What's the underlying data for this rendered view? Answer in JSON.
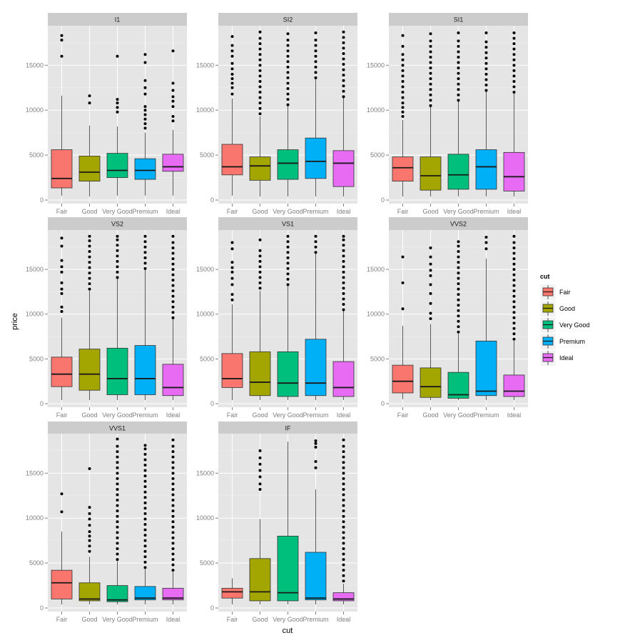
{
  "chart_data": {
    "type": "box",
    "xlabel": "cut",
    "ylabel": "price",
    "categories": [
      "Fair",
      "Good",
      "Very Good",
      "Premium",
      "Ideal"
    ],
    "colors": {
      "Fair": "#f8766d",
      "Good": "#a3a500",
      "Very Good": "#00bf7d",
      "Premium": "#00b0f6",
      "Ideal": "#e76bf3",
      "panel_bg": "#e5e5e5",
      "strip_bg": "#cccccc",
      "grid": "#ffffff"
    },
    "legend": {
      "title": "cut",
      "position": "right",
      "labels": [
        "Fair",
        "Good",
        "Very Good",
        "Premium",
        "Ideal"
      ]
    },
    "facets": [
      {
        "name": "I1",
        "ylim": [
          0,
          19000
        ],
        "yticks": [
          0,
          5000,
          10000,
          15000
        ],
        "boxes": [
          {
            "q1": 1350,
            "median": 2400,
            "q3": 5600,
            "whisker_low": 500,
            "whisker_high": 11600,
            "outliers": [
              16000,
              17800,
              18300
            ]
          },
          {
            "q1": 2100,
            "median": 3100,
            "q3": 4900,
            "whisker_low": 400,
            "whisker_high": 8300,
            "outliers": [
              10800,
              11600
            ]
          },
          {
            "q1": 2500,
            "median": 3300,
            "q3": 5200,
            "whisker_low": 500,
            "whisker_high": 8200,
            "outliers": [
              9800,
              10300,
              10800,
              11200,
              16000
            ]
          },
          {
            "q1": 2300,
            "median": 3300,
            "q3": 4600,
            "whisker_low": 500,
            "whisker_high": 7500,
            "outliers": [
              8000,
              8500,
              9000,
              9500,
              10000,
              10400,
              11800,
              12500,
              13300,
              15300,
              16200
            ]
          },
          {
            "q1": 3200,
            "median": 3700,
            "q3": 5100,
            "whisker_low": 500,
            "whisker_high": 7800,
            "outliers": [
              8800,
              9300,
              10400,
              11000,
              11500,
              12200,
              13000,
              16600
            ]
          }
        ]
      },
      {
        "name": "SI2",
        "ylim": [
          0,
          19000
        ],
        "yticks": [
          0,
          5000,
          10000,
          15000
        ],
        "boxes": [
          {
            "q1": 2800,
            "median": 3700,
            "q3": 6200,
            "whisker_low": 500,
            "whisker_high": 11300,
            "outliers": [
              11800,
              12500,
              13000,
              13500,
              14000,
              14600,
              15200,
              16000,
              16600,
              17200,
              18200
            ]
          },
          {
            "q1": 2200,
            "median": 3800,
            "q3": 4800,
            "whisker_low": 400,
            "whisker_high": 9300,
            "outliers": [
              9600,
              10200,
              10800,
              11400,
              12000,
              12600,
              13200,
              13800,
              14400,
              15000,
              15600,
              16200,
              16800,
              17400,
              18000,
              18700
            ]
          },
          {
            "q1": 2300,
            "median": 4100,
            "q3": 5600,
            "whisker_low": 400,
            "whisker_high": 10500,
            "outliers": [
              10600,
              11200,
              11800,
              12400,
              13000,
              13600,
              14200,
              14800,
              15400,
              16000,
              16600,
              17200,
              17800,
              18500
            ]
          },
          {
            "q1": 2400,
            "median": 4300,
            "q3": 6900,
            "whisker_low": 400,
            "whisker_high": 13500,
            "outliers": [
              13600,
              14200,
              14800,
              15400,
              16000,
              16600,
              17200,
              17800,
              18600
            ]
          },
          {
            "q1": 1500,
            "median": 4100,
            "q3": 5500,
            "whisker_low": 400,
            "whisker_high": 11400,
            "outliers": [
              11500,
              12100,
              12700,
              13300,
              13900,
              14500,
              15100,
              15700,
              16300,
              16900,
              17500,
              18100,
              18700
            ]
          }
        ]
      },
      {
        "name": "SI1",
        "ylim": [
          0,
          19000
        ],
        "yticks": [
          0,
          5000,
          10000,
          15000
        ],
        "boxes": [
          {
            "q1": 2100,
            "median": 3600,
            "q3": 4800,
            "whisker_low": 400,
            "whisker_high": 8900,
            "outliers": [
              9300,
              9800,
              10300,
              10800,
              11400,
              12000,
              12600,
              13200,
              13800,
              14400,
              15000,
              15600,
              16200,
              17100,
              18300
            ]
          },
          {
            "q1": 1100,
            "median": 2700,
            "q3": 4800,
            "whisker_low": 400,
            "whisker_high": 10400,
            "outliers": [
              10500,
              11100,
              11700,
              12300,
              12900,
              13500,
              14100,
              14700,
              15300,
              15900,
              16500,
              17100,
              17700,
              18500
            ]
          },
          {
            "q1": 1200,
            "median": 2800,
            "q3": 5100,
            "whisker_low": 400,
            "whisker_high": 11000,
            "outliers": [
              11100,
              11700,
              12300,
              12900,
              13500,
              14100,
              14700,
              15300,
              15900,
              16500,
              17100,
              17700,
              18600
            ]
          },
          {
            "q1": 1200,
            "median": 3700,
            "q3": 5600,
            "whisker_low": 400,
            "whisker_high": 12100,
            "outliers": [
              12200,
              12800,
              13400,
              14000,
              14600,
              15200,
              15800,
              16400,
              17000,
              17600,
              18600
            ]
          },
          {
            "q1": 1000,
            "median": 2600,
            "q3": 5300,
            "whisker_low": 400,
            "whisker_high": 11900,
            "outliers": [
              12000,
              12600,
              13200,
              13800,
              14400,
              15000,
              15600,
              16200,
              16800,
              17400,
              18000,
              18600
            ]
          }
        ]
      },
      {
        "name": "VS2",
        "ylim": [
          0,
          19000
        ],
        "yticks": [
          0,
          5000,
          10000,
          15000
        ],
        "boxes": [
          {
            "q1": 1900,
            "median": 3300,
            "q3": 5200,
            "whisker_low": 400,
            "whisker_high": 9600,
            "outliers": [
              10300,
              10800,
              12300,
              12800,
              13500,
              14700,
              15300,
              16000,
              17600,
              18500
            ]
          },
          {
            "q1": 1500,
            "median": 3300,
            "q3": 6100,
            "whisker_low": 400,
            "whisker_high": 12600,
            "outliers": [
              12800,
              13400,
              14000,
              14600,
              15200,
              15800,
              16400,
              17000,
              17600,
              18200,
              18700
            ]
          },
          {
            "q1": 1000,
            "median": 2800,
            "q3": 6200,
            "whisker_low": 400,
            "whisker_high": 14000,
            "outliers": [
              14100,
              14700,
              15300,
              15900,
              16500,
              17100,
              17700,
              18300,
              18700
            ]
          },
          {
            "q1": 1000,
            "median": 2800,
            "q3": 6500,
            "whisker_low": 400,
            "whisker_high": 15000,
            "outliers": [
              15100,
              15700,
              16300,
              16900,
              17500,
              18100,
              18700
            ]
          },
          {
            "q1": 900,
            "median": 1800,
            "q3": 4400,
            "whisker_low": 400,
            "whisker_high": 9500,
            "outliers": [
              9600,
              10200,
              10800,
              11400,
              12000,
              12600,
              13200,
              13800,
              14400,
              15000,
              15600,
              16200,
              16800,
              17400,
              18000,
              18700
            ]
          }
        ]
      },
      {
        "name": "VS1",
        "ylim": [
          0,
          19000
        ],
        "yticks": [
          0,
          5000,
          10000,
          15000
        ],
        "boxes": [
          {
            "q1": 1800,
            "median": 2800,
            "q3": 5600,
            "whisker_low": 400,
            "whisker_high": 11100,
            "outliers": [
              11600,
              12200,
              13300,
              14000,
              14700,
              15200,
              15800,
              17300,
              18000
            ]
          },
          {
            "q1": 900,
            "median": 2400,
            "q3": 5800,
            "whisker_low": 400,
            "whisker_high": 12600,
            "outliers": [
              12900,
              13500,
              14100,
              14700,
              15300,
              15900,
              16500,
              17100,
              18300
            ]
          },
          {
            "q1": 800,
            "median": 2300,
            "q3": 5800,
            "whisker_low": 400,
            "whisker_high": 13200,
            "outliers": [
              13300,
              13900,
              14500,
              15100,
              15700,
              16300,
              16900,
              17500,
              18100,
              18700
            ]
          },
          {
            "q1": 900,
            "median": 2300,
            "q3": 7200,
            "whisker_low": 400,
            "whisker_high": 16800,
            "outliers": [
              16900,
              17500,
              18100,
              18700
            ]
          },
          {
            "q1": 800,
            "median": 1800,
            "q3": 4700,
            "whisker_low": 400,
            "whisker_high": 10400,
            "outliers": [
              10500,
              11100,
              11700,
              12300,
              12900,
              13500,
              14100,
              14700,
              15300,
              15900,
              16500,
              17100,
              17700,
              18300,
              18700
            ]
          }
        ]
      },
      {
        "name": "VVS2",
        "ylim": [
          0,
          19000
        ],
        "yticks": [
          0,
          5000,
          10000,
          15000
        ],
        "boxes": [
          {
            "q1": 1200,
            "median": 2500,
            "q3": 4300,
            "whisker_low": 500,
            "whisker_high": 8700,
            "outliers": [
              10600,
              13500,
              16400
            ]
          },
          {
            "q1": 700,
            "median": 1900,
            "q3": 4000,
            "whisker_low": 400,
            "whisker_high": 8900,
            "outliers": [
              9500,
              10100,
              11200,
              12300,
              13300,
              14300,
              14900,
              15600,
              16400,
              17400
            ]
          },
          {
            "q1": 600,
            "median": 1000,
            "q3": 3500,
            "whisker_low": 400,
            "whisker_high": 7800,
            "outliers": [
              8000,
              8600,
              9200,
              9800,
              10400,
              11000,
              11600,
              12200,
              12800,
              13400,
              14000,
              14600,
              15200,
              15800,
              16400,
              17000,
              17600,
              18100
            ]
          },
          {
            "q1": 900,
            "median": 1400,
            "q3": 7000,
            "whisker_low": 400,
            "whisker_high": 16200,
            "outliers": [
              17300,
              18000,
              18600
            ]
          },
          {
            "q1": 800,
            "median": 1400,
            "q3": 3200,
            "whisker_low": 400,
            "whisker_high": 7000,
            "outliers": [
              7200,
              7800,
              8400,
              9000,
              9600,
              10200,
              10800,
              11400,
              12000,
              12600,
              13200,
              13800,
              14400,
              15000,
              15600,
              16200,
              16800,
              17400,
              18000,
              18700
            ]
          }
        ]
      },
      {
        "name": "VVS1",
        "ylim": [
          0,
          19000
        ],
        "yticks": [
          0,
          5000,
          10000,
          15000
        ],
        "boxes": [
          {
            "q1": 1000,
            "median": 2800,
            "q3": 4200,
            "whisker_low": 400,
            "whisker_high": 8500,
            "outliers": [
              10700,
              12700
            ]
          },
          {
            "q1": 800,
            "median": 1000,
            "q3": 2800,
            "whisker_low": 400,
            "whisker_high": 5700,
            "outliers": [
              6300,
              6900,
              7500,
              8000,
              8500,
              9200,
              9900,
              10500,
              11200,
              15500
            ]
          },
          {
            "q1": 700,
            "median": 900,
            "q3": 2500,
            "whisker_low": 400,
            "whisker_high": 5200,
            "outliers": [
              5400,
              6000,
              6600,
              7200,
              7800,
              8400,
              9000,
              9600,
              10200,
              10800,
              11400,
              12000,
              12600,
              13200,
              13800,
              14400,
              15000,
              15600,
              16200,
              16800,
              17400,
              18000,
              18800
            ]
          },
          {
            "q1": 900,
            "median": 1100,
            "q3": 2400,
            "whisker_low": 400,
            "whisker_high": 4300,
            "outliers": [
              4500,
              5100,
              5700,
              6300,
              6900,
              7500,
              8100,
              8700,
              9300,
              9900,
              10500,
              11100,
              11700,
              12300,
              12900,
              13500,
              14100,
              14700,
              15300,
              15900,
              16500,
              17100,
              17700,
              18100
            ]
          },
          {
            "q1": 900,
            "median": 1100,
            "q3": 2200,
            "whisker_low": 400,
            "whisker_high": 4000,
            "outliers": [
              4200,
              4800,
              5400,
              6000,
              6600,
              7200,
              7800,
              8400,
              9000,
              9600,
              10200,
              10800,
              11400,
              12000,
              12600,
              13200,
              13800,
              14400,
              15000,
              15600,
              16200,
              16800,
              17400,
              18000,
              18700
            ]
          }
        ]
      },
      {
        "name": "IF",
        "ylim": [
          0,
          19000
        ],
        "yticks": [
          0,
          5000,
          10000,
          15000
        ],
        "boxes": [
          {
            "q1": 1100,
            "median": 1800,
            "q3": 2200,
            "whisker_low": 400,
            "whisker_high": 3300,
            "outliers": []
          },
          {
            "q1": 800,
            "median": 1800,
            "q3": 5500,
            "whisker_low": 400,
            "whisker_high": 9900,
            "outliers": [
              13200,
              13800,
              14600,
              15300,
              16000,
              16700,
              17500
            ]
          },
          {
            "q1": 800,
            "median": 1700,
            "q3": 8000,
            "whisker_low": 400,
            "whisker_high": 18500,
            "outliers": []
          },
          {
            "q1": 900,
            "median": 1100,
            "q3": 6200,
            "whisker_low": 400,
            "whisker_high": 13200,
            "outliers": [
              15600,
              16300,
              17900,
              18300,
              18600
            ]
          },
          {
            "q1": 800,
            "median": 1000,
            "q3": 1700,
            "whisker_low": 400,
            "whisker_high": 2700,
            "outliers": [
              3000,
              3600,
              4200,
              4800,
              5400,
              6000,
              6600,
              7200,
              7800,
              8400,
              9000,
              9600,
              10200,
              10800,
              11400,
              12000,
              12600,
              13200,
              13800,
              14400,
              15000,
              15600,
              16200,
              16800,
              17400,
              18000,
              18700
            ]
          }
        ]
      }
    ]
  }
}
